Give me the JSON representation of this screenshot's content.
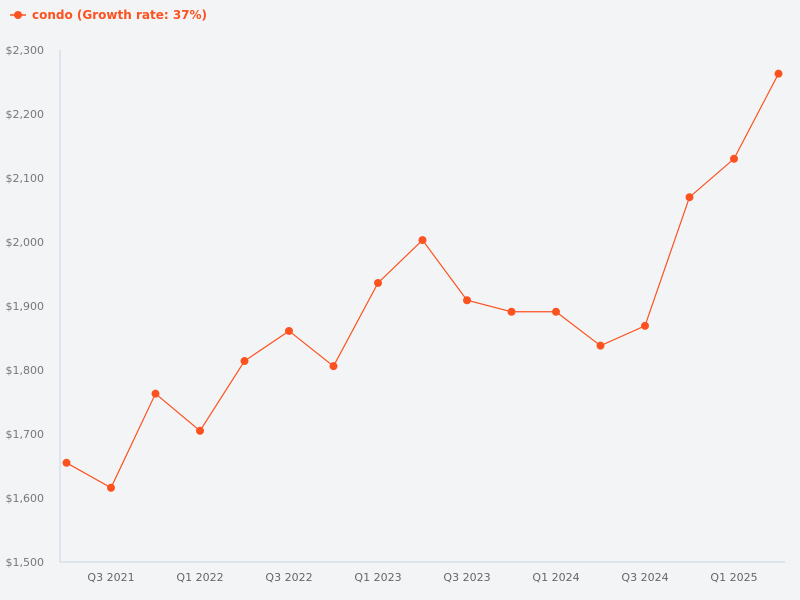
{
  "legend": {
    "label": "condo (Growth rate: 37%)"
  },
  "colors": {
    "series": "#fc5220",
    "axis": "#c9d3e6",
    "background": "#f3f4f6"
  },
  "chart_data": {
    "type": "line",
    "title": "",
    "xlabel": "",
    "ylabel": "",
    "ylim": [
      1500,
      2300
    ],
    "grid": false,
    "legend_position": "top-left",
    "y_ticks": [
      "$1,500",
      "$1,600",
      "$1,700",
      "$1,800",
      "$1,900",
      "$2,000",
      "$2,100",
      "$2,200",
      "$2,300"
    ],
    "x_tick_labels": [
      "Q3 2021",
      "Q1 2022",
      "Q3 2022",
      "Q1 2023",
      "Q3 2023",
      "Q1 2024",
      "Q3 2024",
      "Q1 2025"
    ],
    "categories": [
      "Q2 2021",
      "Q3 2021",
      "Q4 2021",
      "Q1 2022",
      "Q2 2022",
      "Q3 2022",
      "Q4 2022",
      "Q1 2023",
      "Q2 2023",
      "Q3 2023",
      "Q4 2023",
      "Q1 2024",
      "Q2 2024",
      "Q3 2024",
      "Q4 2024",
      "Q1 2025",
      "Q2 2025"
    ],
    "series": [
      {
        "name": "condo (Growth rate: 37%)",
        "values": [
          1655,
          1616,
          1763,
          1705,
          1814,
          1861,
          1806,
          1936,
          2003,
          1909,
          1891,
          1891,
          1838,
          1869,
          2070,
          2130,
          2263
        ]
      }
    ]
  }
}
